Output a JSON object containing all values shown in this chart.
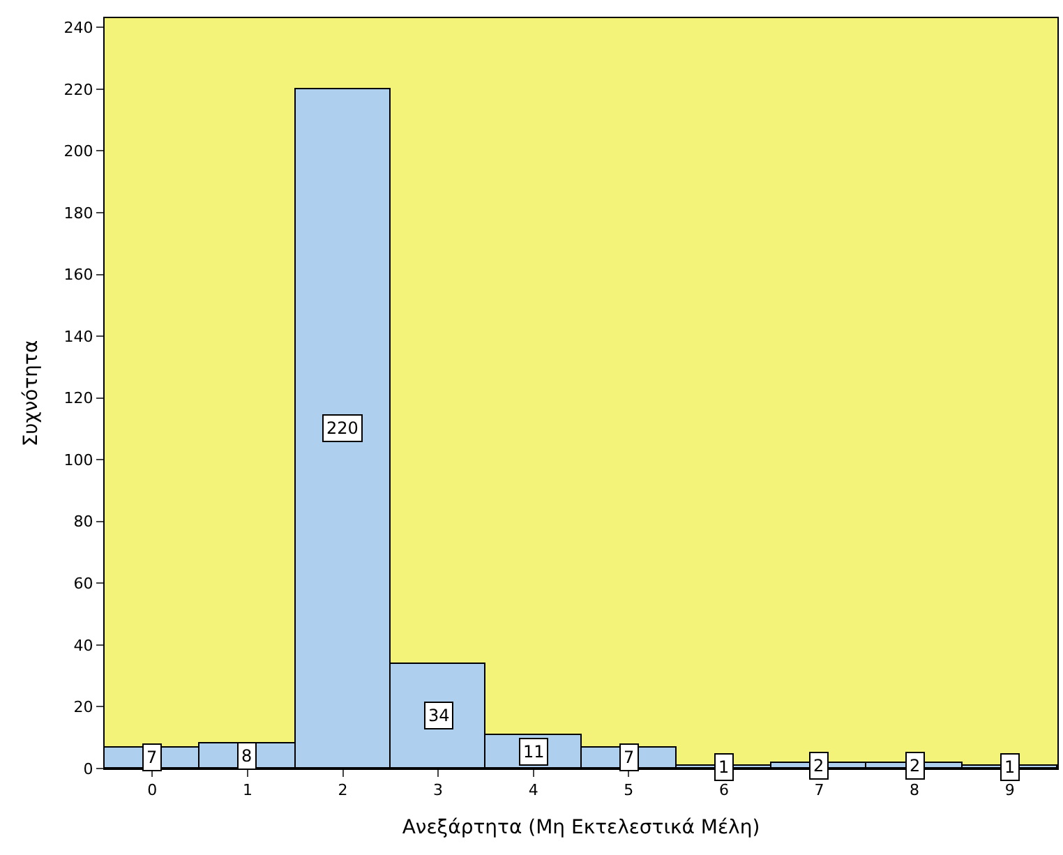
{
  "chart_data": {
    "type": "bar",
    "xlabel": "Ανεξάρτητα (Μη Εκτελεστικά Μέλη)",
    "ylabel": "Συχνότητα",
    "categories": [
      "0",
      "1",
      "2",
      "3",
      "4",
      "5",
      "6",
      "7",
      "8",
      "9"
    ],
    "values": [
      7,
      8,
      220,
      34,
      11,
      7,
      1,
      2,
      2,
      1
    ],
    "color": "#aed0ee",
    "ylim": [
      0,
      243
    ],
    "yticks": [
      0,
      20,
      40,
      60,
      80,
      100,
      120,
      140,
      160,
      180,
      200,
      220,
      240
    ],
    "data_labels": true,
    "grid": false,
    "legend": false
  }
}
